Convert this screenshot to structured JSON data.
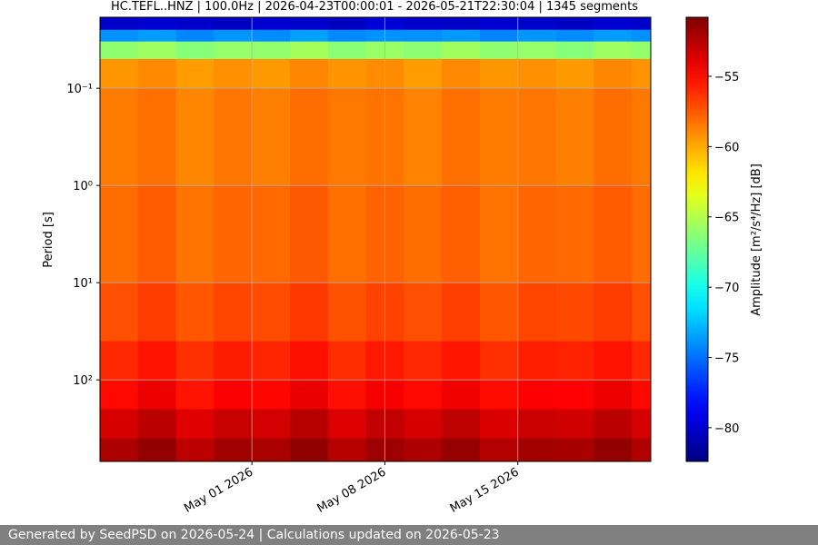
{
  "chart_data": {
    "type": "spectrogram",
    "title": "HC.TEFL..HNZ | 100.0Hz | 2026-04-23T00:00:01 - 2026-05-21T22:30:04 | 1345 segments",
    "y_label": "Period [s]",
    "colorbar_label": "Amplitude [m²/s⁴/Hz] [dB]",
    "colormap": "jet",
    "grid": true,
    "yscale": "log",
    "y_inverted": true,
    "xlim": [
      "2026-04-23",
      "2026-05-22"
    ],
    "xticks": [
      {
        "value": "2026-05-01",
        "label": "May 01 2026"
      },
      {
        "value": "2026-05-08",
        "label": "May 08 2026"
      },
      {
        "value": "2026-05-15",
        "label": "May 15 2026"
      }
    ],
    "ylim": [
      0.0186,
      690
    ],
    "yticks": [
      {
        "value": 0.1,
        "label": "10⁻¹"
      },
      {
        "value": 1,
        "label": "10⁰"
      },
      {
        "value": 10,
        "label": "10¹"
      },
      {
        "value": 100,
        "label": "10²"
      }
    ],
    "clim": [
      -82.4,
      -50.8
    ],
    "cticks": [
      {
        "value": -55,
        "label": "−55"
      },
      {
        "value": -60,
        "label": "−60"
      },
      {
        "value": -65,
        "label": "−65"
      },
      {
        "value": -70,
        "label": "−70"
      },
      {
        "value": -75,
        "label": "−75"
      },
      {
        "value": -80,
        "label": "−80"
      }
    ],
    "x_bins": [
      "2026-04-23",
      "2026-04-25",
      "2026-04-27",
      "2026-04-29",
      "2026-05-01",
      "2026-05-03",
      "2026-05-05",
      "2026-05-07",
      "2026-05-09",
      "2026-05-11",
      "2026-05-13",
      "2026-05-15",
      "2026-05-17",
      "2026-05-19",
      "2026-05-21",
      "2026-05-22"
    ],
    "y_bins": [
      0.0186,
      0.025,
      0.033,
      0.05,
      0.1,
      1,
      10,
      40,
      100,
      200,
      400,
      690
    ],
    "values": [
      [
        -80.2,
        -79.8,
        -80.1,
        -80.3,
        -79.9,
        -80.0,
        -80.4,
        -79.7,
        -80.1,
        -80.2,
        -79.9,
        -80.0,
        -80.3,
        -79.8,
        -80.1
      ],
      [
        -74.0,
        -73.6,
        -74.3,
        -73.8,
        -74.1,
        -73.5,
        -74.2,
        -73.9,
        -74.0,
        -73.7,
        -74.4,
        -73.8,
        -74.1,
        -73.6,
        -74.0
      ],
      [
        -66.1,
        -65.7,
        -66.4,
        -65.9,
        -66.0,
        -65.5,
        -66.3,
        -65.8,
        -66.2,
        -65.6,
        -66.1,
        -65.9,
        -66.4,
        -65.7,
        -66.0
      ],
      [
        -59.4,
        -59.0,
        -59.6,
        -59.2,
        -59.5,
        -58.9,
        -59.3,
        -59.1,
        -59.6,
        -59.0,
        -59.4,
        -59.2,
        -59.5,
        -58.9,
        -59.3
      ],
      [
        -58.6,
        -58.2,
        -58.9,
        -58.4,
        -58.7,
        -58.1,
        -58.5,
        -58.3,
        -58.8,
        -58.2,
        -58.6,
        -58.4,
        -58.7,
        -58.1,
        -58.5
      ],
      [
        -58.1,
        -57.6,
        -58.3,
        -57.9,
        -58.0,
        -57.5,
        -58.2,
        -57.8,
        -58.1,
        -57.7,
        -58.3,
        -57.9,
        -58.0,
        -57.6,
        -58.1
      ],
      [
        -57.2,
        -56.6,
        -57.4,
        -56.9,
        -57.1,
        -56.5,
        -57.3,
        -56.8,
        -57.2,
        -56.7,
        -57.4,
        -56.9,
        -57.0,
        -56.6,
        -57.2
      ],
      [
        -56.0,
        -55.3,
        -56.2,
        -55.6,
        -55.9,
        -55.2,
        -56.1,
        -55.5,
        -56.0,
        -55.4,
        -56.2,
        -55.7,
        -55.8,
        -55.3,
        -56.0
      ],
      [
        -55.0,
        -54.2,
        -55.3,
        -54.6,
        -54.9,
        -54.1,
        -55.2,
        -54.5,
        -55.0,
        -54.3,
        -55.1,
        -54.7,
        -54.8,
        -54.2,
        -55.0
      ],
      [
        -53.5,
        -52.6,
        -53.8,
        -53.0,
        -53.4,
        -52.5,
        -53.7,
        -52.9,
        -53.5,
        -52.7,
        -53.6,
        -53.1,
        -53.3,
        -52.6,
        -53.5
      ],
      [
        -52.2,
        -51.4,
        -52.6,
        -51.8,
        -52.1,
        -51.3,
        -52.5,
        -51.7,
        -52.2,
        -51.5,
        -52.4,
        -51.9,
        -52.0,
        -51.4,
        -52.3
      ]
    ],
    "footer": "Generated by SeedPSD on 2026-05-24 | Calculations updated on 2026-05-23"
  }
}
